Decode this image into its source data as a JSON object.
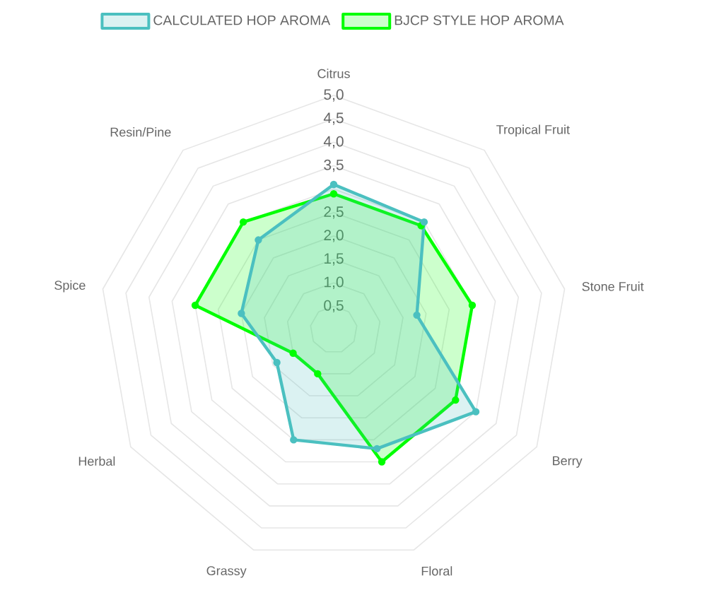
{
  "chart_data": {
    "type": "radar",
    "categories": [
      "Citrus",
      "Tropical Fruit",
      "Stone Fruit",
      "Berry",
      "Floral",
      "Grassy",
      "Herbal",
      "Spice",
      "Resin/Pine"
    ],
    "series": [
      {
        "name": "CALCULATED HOP AROMA",
        "color": "#4bc0c0",
        "values": [
          3.1,
          3.0,
          1.8,
          3.5,
          2.7,
          2.5,
          1.4,
          2.0,
          2.5
        ]
      },
      {
        "name": "BJCP STYLE HOP AROMA",
        "color": "#00ff00",
        "values": [
          2.9,
          2.9,
          3.0,
          3.0,
          3.0,
          1.0,
          1.0,
          3.0,
          3.0
        ]
      }
    ],
    "ylim": [
      0,
      5
    ],
    "yticks": [
      {
        "value": 0.5,
        "label": "0,5"
      },
      {
        "value": 1.0,
        "label": "1,0"
      },
      {
        "value": 1.5,
        "label": "1,5"
      },
      {
        "value": 2.0,
        "label": "2,0"
      },
      {
        "value": 2.5,
        "label": "2,5"
      },
      {
        "value": 3.5,
        "label": "3,5"
      },
      {
        "value": 4.0,
        "label": "4,0"
      },
      {
        "value": 4.5,
        "label": "4,5"
      },
      {
        "value": 5.0,
        "label": "5,0"
      }
    ],
    "grid": true,
    "legend": "top",
    "marker": "circle",
    "line_style": "solid"
  }
}
